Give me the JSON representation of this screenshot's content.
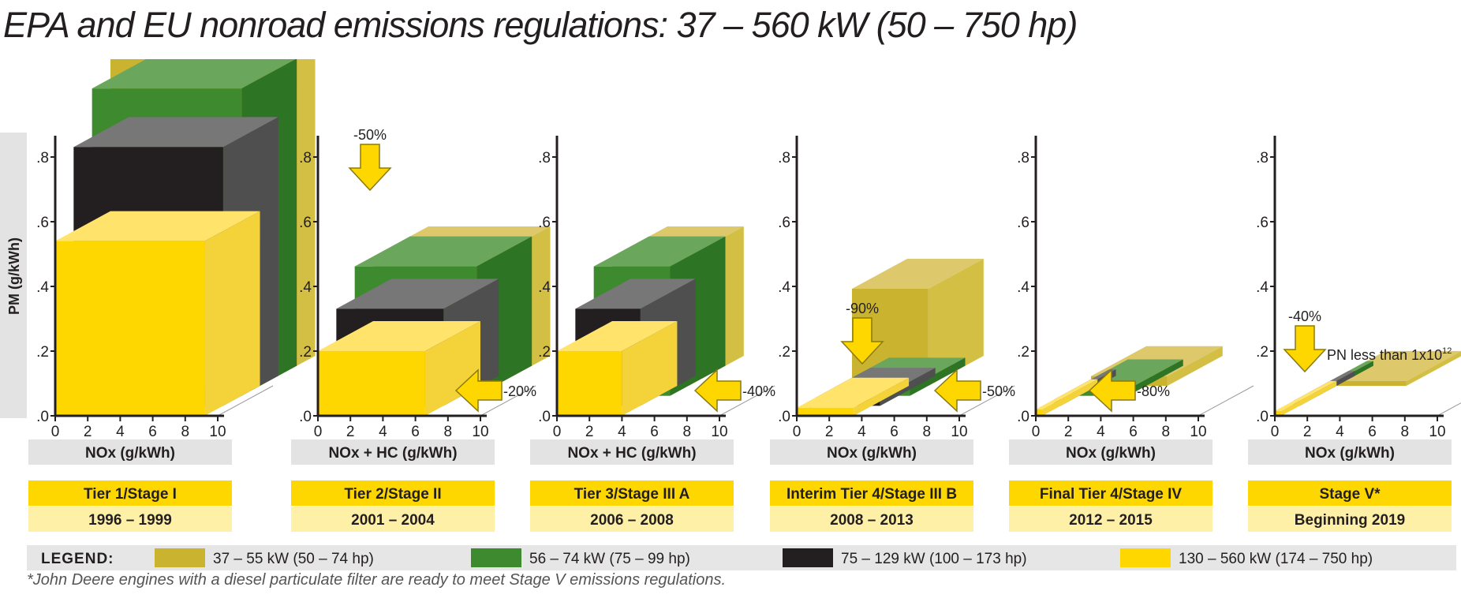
{
  "title": "EPA and EU nonroad emissions regulations: 37 – 560 kW (50 – 750 hp)",
  "chart_data": {
    "type": "bar",
    "y_axis_label": "PM (g/kWh)",
    "y_ticks": [
      ".0",
      ".2",
      ".4",
      ".6",
      ".8"
    ],
    "x_ticks": [
      "0",
      "2",
      "4",
      "6",
      "8",
      "10"
    ],
    "ylim": [
      0,
      0.8
    ],
    "xlim": [
      0,
      10
    ],
    "series": [
      {
        "name": "37 – 55 kW (50 – 74 hp)",
        "color": "#c9b32f",
        "side": "#d4bf45",
        "top": "#ddc96c"
      },
      {
        "name": "56 – 74 kW (75 – 99 hp)",
        "color": "#3d8a2f",
        "side": "#2d7424",
        "top": "#6ba65d"
      },
      {
        "name": "75 – 129 kW (100 – 173 hp)",
        "color": "#231f20",
        "side": "#4f4f4f",
        "top": "#777777"
      },
      {
        "name": "130 – 560 kW (174 – 750 hp)",
        "color": "#ffd700",
        "side": "#f4d33a",
        "top": "#ffe36a"
      }
    ],
    "panels": [
      {
        "x_label": "NOx (g/kWh)",
        "stage": "Tier 1/Stage I",
        "years": "1996 – 1999",
        "annotations": [],
        "boxes": [
          {
            "series": 0,
            "nox": 9.2,
            "pm": 1.1
          },
          {
            "series": 1,
            "nox": 9.2,
            "pm": 0.95
          },
          {
            "series": 2,
            "nox": 9.2,
            "pm": 0.8
          },
          {
            "series": 3,
            "nox": 9.2,
            "pm": 0.54
          }
        ]
      },
      {
        "x_label": "NOx + HC (g/kWh)",
        "stage": "Tier 2/Stage II",
        "years": "2001 – 2004",
        "annotations": [
          {
            "text": "-50%",
            "arrow": "down"
          },
          {
            "text": "-20%",
            "arrow": "left"
          }
        ],
        "boxes": [
          {
            "series": 0,
            "nox": 7.5,
            "pm": 0.4
          },
          {
            "series": 1,
            "nox": 7.5,
            "pm": 0.4
          },
          {
            "series": 2,
            "nox": 6.6,
            "pm": 0.3
          },
          {
            "series": 3,
            "nox": 6.6,
            "pm": 0.2
          }
        ]
      },
      {
        "x_label": "NOx + HC (g/kWh)",
        "stage": "Tier 3/Stage III A",
        "years": "2006 – 2008",
        "annotations": [
          {
            "text": "-40%",
            "arrow": "left"
          }
        ],
        "boxes": [
          {
            "series": 0,
            "nox": 4.7,
            "pm": 0.4
          },
          {
            "series": 1,
            "nox": 4.7,
            "pm": 0.4
          },
          {
            "series": 2,
            "nox": 4.0,
            "pm": 0.3
          },
          {
            "series": 3,
            "nox": 4.0,
            "pm": 0.2
          }
        ]
      },
      {
        "x_label": "NOx (g/kWh)",
        "stage": "Interim Tier 4/Stage III B",
        "years": "2008 – 2013",
        "annotations": [
          {
            "text": "-90%",
            "arrow": "down"
          },
          {
            "text": "-50%",
            "arrow": "left"
          }
        ],
        "boxes": [
          {
            "series": 0,
            "nox": 4.7,
            "pm": 0.3
          },
          {
            "series": 1,
            "nox": 4.7,
            "pm": 0.025
          },
          {
            "series": 2,
            "nox": 4.0,
            "pm": 0.025
          },
          {
            "series": 3,
            "nox": 3.5,
            "pm": 0.025
          }
        ]
      },
      {
        "x_label": "NOx (g/kWh)",
        "stage": "Final Tier 4/Stage IV",
        "years": "2012 – 2015",
        "annotations": [
          {
            "text": "-80%",
            "arrow": "left"
          }
        ],
        "boxes": [
          {
            "series": 0,
            "nox": 4.7,
            "pm": 0.03
          },
          {
            "series": 1,
            "nox": 3.4,
            "pm": 0.02
          },
          {
            "series": 2,
            "nox": 0.4,
            "pm": 0.02
          },
          {
            "series": 3,
            "nox": 0.4,
            "pm": 0.02
          }
        ]
      },
      {
        "x_label": "NOx (g/kWh)",
        "stage": "Stage V*",
        "years": "Beginning 2019",
        "annotations": [
          {
            "text": "-40%",
            "arrow": "down"
          },
          {
            "text": "PN less than 1x10",
            "sup": "12"
          }
        ],
        "boxes": [
          {
            "series": 0,
            "nox": 4.7,
            "pm": 0.015
          },
          {
            "series": 1,
            "nox": 0.4,
            "pm": 0.015
          },
          {
            "series": 2,
            "nox": 0.4,
            "pm": 0.015
          },
          {
            "series": 3,
            "nox": 0.4,
            "pm": 0.015
          }
        ]
      }
    ]
  },
  "legend": {
    "label": "LEGEND:"
  },
  "footnote": "*John Deere engines with a diesel particulate filter are ready to meet Stage V emissions regulations."
}
